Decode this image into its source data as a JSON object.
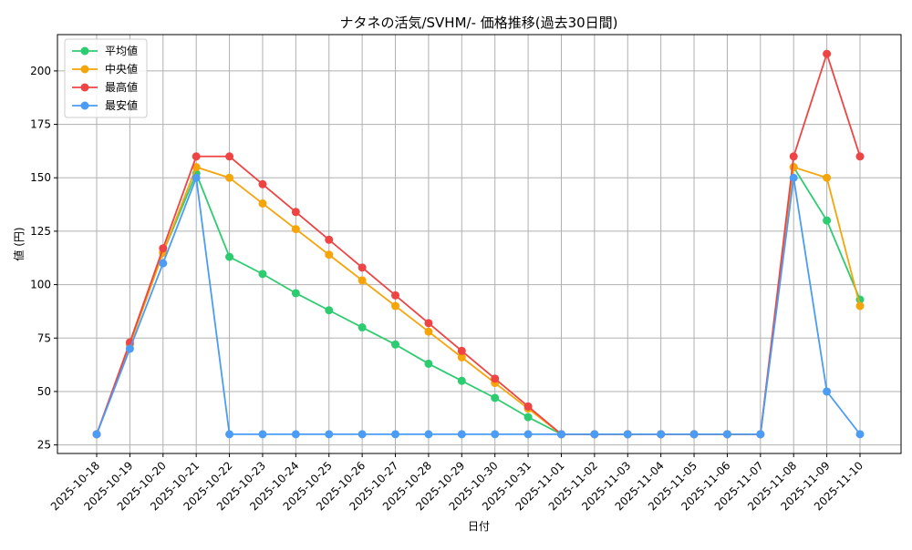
{
  "chart_data": {
    "type": "line",
    "title": "ナタネの活気/SVHM/- 価格推移(過去30日間)",
    "xlabel": "日付",
    "ylabel": "値 (円)",
    "categories": [
      "2025-10-18",
      "2025-10-19",
      "2025-10-20",
      "2025-10-21",
      "2025-10-22",
      "2025-10-23",
      "2025-10-24",
      "2025-10-25",
      "2025-10-26",
      "2025-10-27",
      "2025-10-28",
      "2025-10-29",
      "2025-10-30",
      "2025-10-31",
      "2025-11-01",
      "2025-11-02",
      "2025-11-03",
      "2025-11-04",
      "2025-11-05",
      "2025-11-06",
      "2025-11-07",
      "2025-11-08",
      "2025-11-09",
      "2025-11-10"
    ],
    "ylim": [
      21,
      217
    ],
    "yticks": [
      25,
      50,
      75,
      100,
      125,
      150,
      175,
      200
    ],
    "grid": true,
    "legend_position": "top-left",
    "series": [
      {
        "name": "平均値",
        "color": "#2ecc71",
        "values": [
          30,
          72,
          115,
          152,
          113,
          105,
          96,
          88,
          80,
          72,
          63,
          55,
          47,
          38,
          30,
          30,
          30,
          30,
          30,
          30,
          30,
          155,
          130,
          93
        ]
      },
      {
        "name": "中央値",
        "color": "#f5a50a",
        "values": [
          30,
          72,
          115,
          155,
          150,
          138,
          126,
          114,
          102,
          90,
          78,
          66,
          54,
          42,
          30,
          30,
          30,
          30,
          30,
          30,
          30,
          155,
          150,
          90
        ]
      },
      {
        "name": "最高値",
        "color": "#ef4444",
        "values": [
          30,
          73,
          117,
          160,
          160,
          147,
          134,
          121,
          108,
          95,
          82,
          69,
          56,
          43,
          30,
          30,
          30,
          30,
          30,
          30,
          30,
          160,
          208,
          160
        ]
      },
      {
        "name": "最安値",
        "color": "#4b9cf5",
        "values": [
          30,
          70,
          110,
          150,
          30,
          30,
          30,
          30,
          30,
          30,
          30,
          30,
          30,
          30,
          30,
          30,
          30,
          30,
          30,
          30,
          30,
          150,
          50,
          30
        ]
      }
    ]
  }
}
